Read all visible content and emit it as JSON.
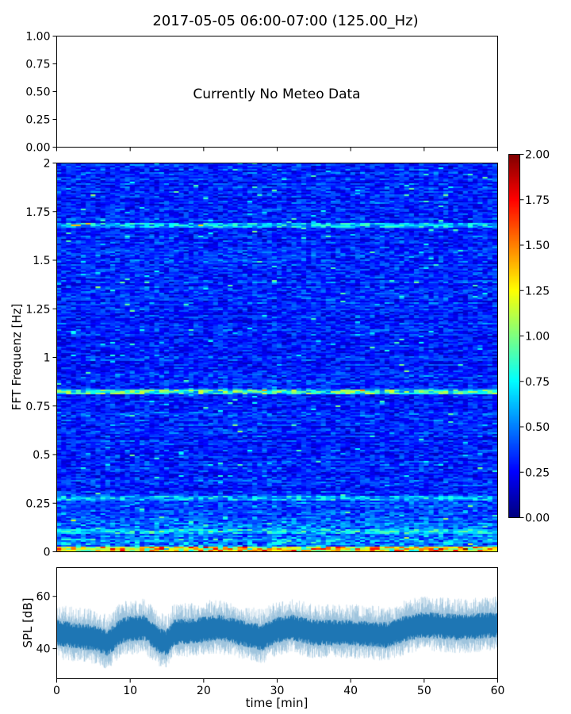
{
  "chart_data": [
    {
      "type": "text-panel",
      "title": "2017-05-05 06:00-07:00 (125.00_Hz)",
      "message": "Currently No Meteo Data",
      "ylim": [
        0,
        1
      ],
      "yticks": [
        "0.00",
        "0.25",
        "0.50",
        "0.75",
        "1.00"
      ],
      "xlim": [
        0,
        60
      ]
    },
    {
      "type": "heatmap",
      "ylabel": "FFT Frequenz [Hz]",
      "xlim": [
        0,
        60
      ],
      "ylim": [
        0,
        2
      ],
      "yticks": [
        "0",
        "0.25",
        "0.5",
        "0.75",
        "1",
        "1.25",
        "1.5",
        "1.75",
        "2"
      ],
      "colormap": "jet",
      "clim": [
        0,
        2
      ],
      "colorbar_ticks": [
        "0.00",
        "0.25",
        "0.50",
        "0.75",
        "1.00",
        "1.25",
        "1.50",
        "1.75",
        "2.00"
      ],
      "background_level": 0.25,
      "bands": [
        {
          "freq": 0.01,
          "level": 1.1
        },
        {
          "freq": 0.82,
          "level": 0.9
        },
        {
          "freq": 0.27,
          "level": 0.65
        },
        {
          "freq": 0.1,
          "level": 0.55
        },
        {
          "freq": 1.68,
          "level": 0.7
        }
      ]
    },
    {
      "type": "line",
      "ylabel": "SPL [dB]",
      "xlabel": "time [min]",
      "xlim": [
        0,
        60
      ],
      "ylim": [
        28.5,
        71
      ],
      "xticks": [
        "0",
        "10",
        "20",
        "30",
        "40",
        "50",
        "60"
      ],
      "yticks": [
        "40",
        "60"
      ],
      "color": "#1f77b4",
      "x": [
        0,
        2,
        5,
        7,
        9,
        12,
        14,
        15,
        16,
        20,
        22,
        25,
        28,
        30,
        32,
        35,
        40,
        45,
        48,
        50,
        55,
        60
      ],
      "y": [
        46,
        45,
        44,
        42,
        47,
        48,
        43,
        42,
        46,
        47,
        48,
        46,
        44,
        47,
        48,
        46,
        46,
        45,
        48,
        49,
        48,
        49
      ]
    }
  ]
}
